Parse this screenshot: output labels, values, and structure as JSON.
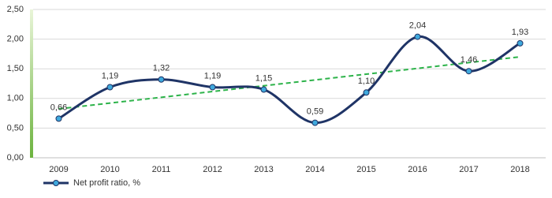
{
  "chart_data": {
    "type": "line",
    "categories": [
      "2009",
      "2010",
      "2011",
      "2012",
      "2013",
      "2014",
      "2015",
      "2016",
      "2017",
      "2018"
    ],
    "series": [
      {
        "name": "Net profit ratio, %",
        "color": "#1f3466",
        "marker_color": "#3fa9dd",
        "values": [
          0.66,
          1.19,
          1.32,
          1.19,
          1.15,
          0.59,
          1.1,
          2.04,
          1.46,
          1.93
        ],
        "value_labels": [
          "0,66",
          "1,19",
          "1,32",
          "1,19",
          "1,15",
          "0,59",
          "1,10",
          "2,04",
          "1,46",
          "1,93"
        ]
      }
    ],
    "ylim": [
      0,
      2.5
    ],
    "yticks": [
      {
        "value": 0,
        "label": "0,00"
      },
      {
        "value": 0.5,
        "label": "0,50"
      },
      {
        "value": 1,
        "label": "1,00"
      },
      {
        "value": 1.5,
        "label": "1,50"
      },
      {
        "value": 2,
        "label": "2,00"
      },
      {
        "value": 2.5,
        "label": "2,50"
      }
    ],
    "grid": true,
    "smooth": true,
    "trendline": "linear",
    "trendline_color": "#2db34a",
    "legend": "bottom-left"
  }
}
